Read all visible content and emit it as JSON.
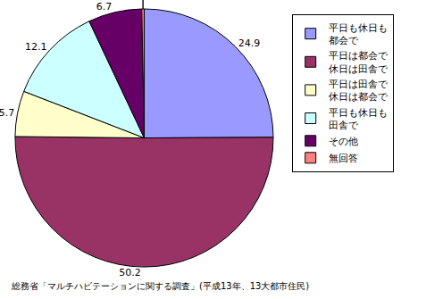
{
  "chart_data": {
    "type": "pie",
    "categories": [
      "平日も休日も\n都会で",
      "平日は都会で\n休日は田舎で",
      "平日は田舎で\n休日は都会で",
      "平日も休日も\n田舎で",
      "その他",
      "無回答"
    ],
    "values": [
      24.9,
      50.2,
      5.7,
      12.1,
      6.7,
      0.3
    ],
    "colors": [
      "#9999ff",
      "#993366",
      "#ffffcc",
      "#ccffff",
      "#660066",
      "#ff8080"
    ],
    "data_labels": true,
    "legend": "right",
    "source": "総務省「マルチハビテーションに関する調査」(平成13年、13大都市住民)"
  }
}
